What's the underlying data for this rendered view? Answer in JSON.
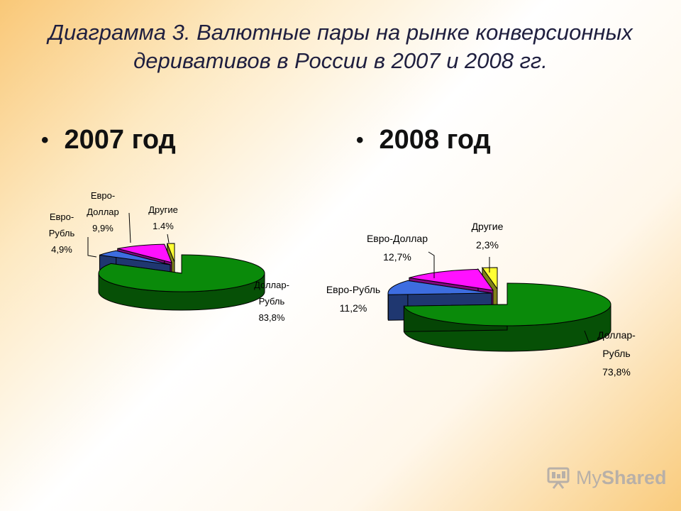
{
  "title": "Диаграмма 3. Валютные пары на рынке конверсионных деривативов в России в 2007 и 2008 гг.",
  "bullet": "•",
  "logo": {
    "my": "My",
    "shared": "Shared"
  },
  "chart_data": [
    {
      "type": "pie",
      "title": "2007 год",
      "slices": [
        {
          "name": "Доллар-Рубль",
          "value": 83.8,
          "label_lines": [
            "Доллар-",
            "Рубль",
            "83,8%"
          ],
          "color": "#0a8a0a"
        },
        {
          "name": "Евро-Рубль",
          "value": 4.9,
          "label_lines": [
            "Евро-",
            "Рубль",
            "4,9%"
          ],
          "color": "#3d6de0"
        },
        {
          "name": "Евро-Доллар",
          "value": 9.9,
          "label_lines": [
            "Евро-",
            "Доллар",
            "9,9%"
          ],
          "color": "#ff11ff"
        },
        {
          "name": "Другие",
          "value": 1.4,
          "label_lines": [
            "Другие",
            "1.4%"
          ],
          "color": "#ffff33"
        }
      ]
    },
    {
      "type": "pie",
      "title": "2008 год",
      "slices": [
        {
          "name": "Доллар-Рубль",
          "value": 73.8,
          "label_lines": [
            "Доллар-",
            "Рубль",
            "73,8%"
          ],
          "color": "#0a8a0a"
        },
        {
          "name": "Евро-Рубль",
          "value": 11.2,
          "label_lines": [
            "Евро-Рубль",
            "11,2%"
          ],
          "color": "#3d6de0"
        },
        {
          "name": "Евро-Доллар",
          "value": 12.7,
          "label_lines": [
            "Евро-Доллар",
            "12,7%"
          ],
          "color": "#ff11ff"
        },
        {
          "name": "Другие",
          "value": 2.3,
          "label_lines": [
            "Другие",
            "2,3%"
          ],
          "color": "#ffff33"
        }
      ]
    }
  ]
}
